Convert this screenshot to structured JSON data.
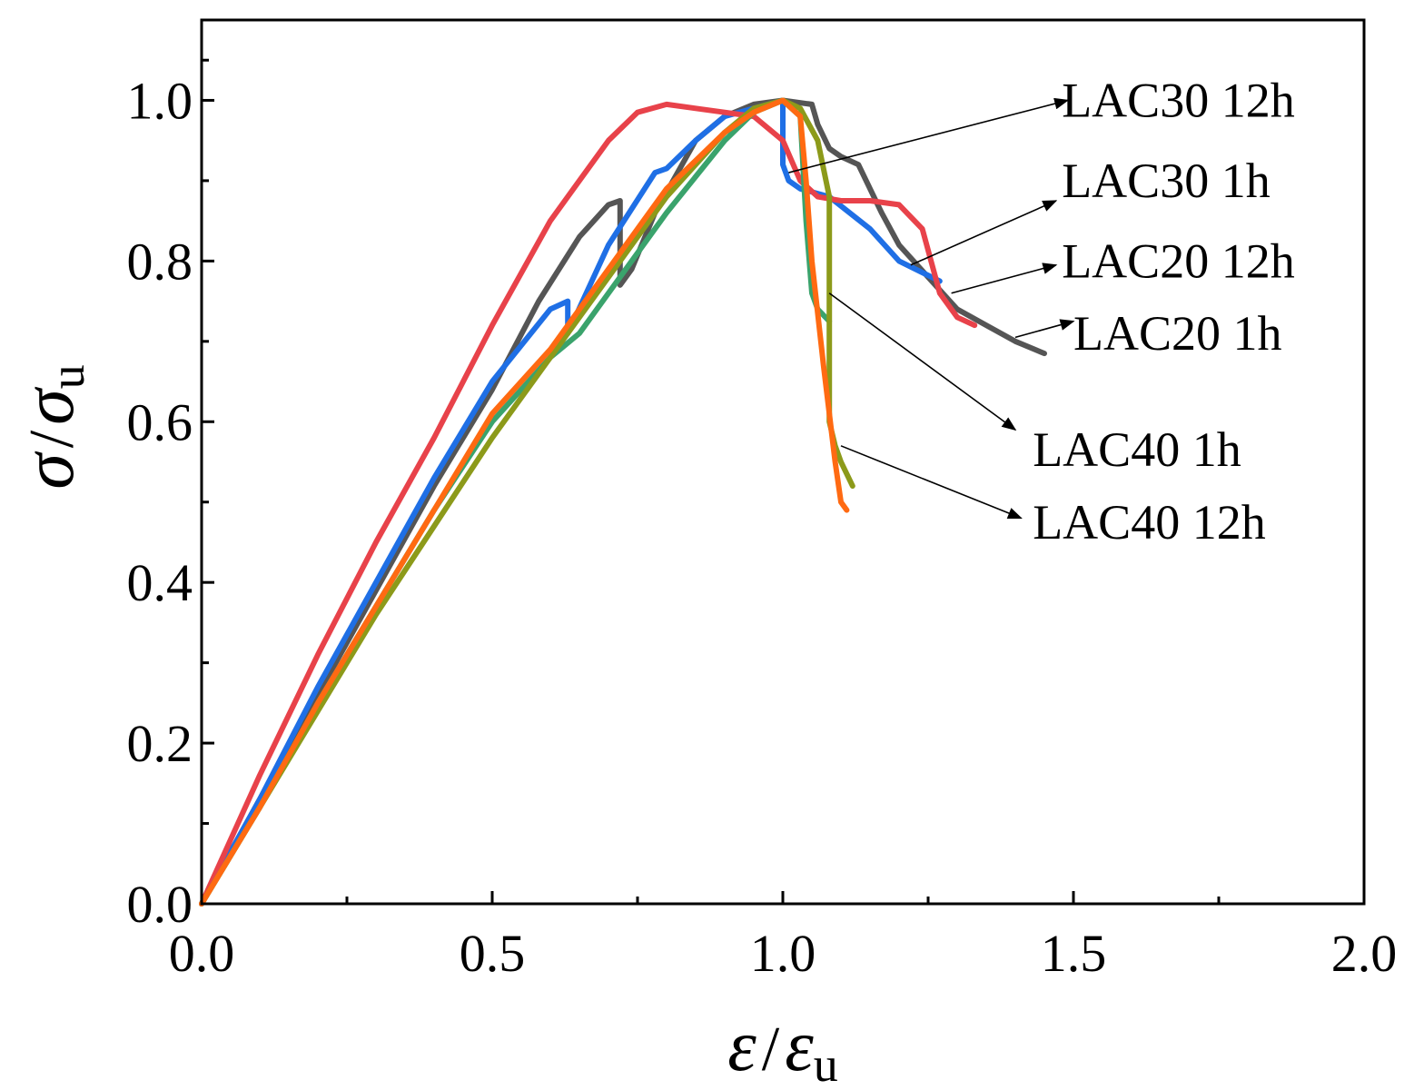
{
  "chart_data": {
    "type": "line",
    "title": "",
    "xlabel": {
      "symbol": "ε",
      "sep": "/",
      "denom": "ε",
      "sub": "u"
    },
    "ylabel": {
      "symbol": "σ",
      "sep": "/",
      "denom": "σ",
      "sub": "u"
    },
    "xlim": [
      0,
      2.0
    ],
    "ylim": [
      0,
      1.1
    ],
    "x_ticks": [
      0.0,
      0.5,
      1.0,
      1.5,
      2.0
    ],
    "x_tick_labels": [
      "0.0",
      "0.5",
      "1.0",
      "1.5",
      "2.0"
    ],
    "y_ticks": [
      0.0,
      0.2,
      0.4,
      0.6,
      0.8,
      1.0
    ],
    "y_tick_labels": [
      "0.0",
      "0.2",
      "0.4",
      "0.6",
      "0.8",
      "1.0"
    ],
    "grid": false,
    "series": [
      {
        "name": "LAC30 12h",
        "color": "#555555",
        "x": [
          0,
          0.1,
          0.2,
          0.3,
          0.4,
          0.5,
          0.58,
          0.65,
          0.7,
          0.72,
          0.72,
          0.74,
          0.78,
          0.85,
          0.9,
          0.95,
          1.0,
          1.05,
          1.06,
          1.08,
          1.1,
          1.13,
          1.17,
          1.2,
          1.25,
          1.3,
          1.35,
          1.4,
          1.45
        ],
        "y": [
          0,
          0.13,
          0.26,
          0.39,
          0.52,
          0.64,
          0.75,
          0.83,
          0.87,
          0.875,
          0.77,
          0.79,
          0.86,
          0.95,
          0.98,
          0.995,
          1.0,
          0.995,
          0.97,
          0.94,
          0.93,
          0.92,
          0.86,
          0.82,
          0.78,
          0.74,
          0.72,
          0.7,
          0.685
        ]
      },
      {
        "name": "LAC30 1h",
        "color": "#1f6fe5",
        "x": [
          0,
          0.1,
          0.2,
          0.3,
          0.4,
          0.5,
          0.6,
          0.63,
          0.63,
          0.7,
          0.78,
          0.8,
          0.85,
          0.9,
          0.95,
          1.0,
          1.0,
          1.01,
          1.03,
          1.08,
          1.15,
          1.2,
          1.27
        ],
        "y": [
          0,
          0.13,
          0.27,
          0.4,
          0.53,
          0.65,
          0.74,
          0.75,
          0.71,
          0.82,
          0.91,
          0.915,
          0.95,
          0.98,
          0.99,
          1.0,
          0.92,
          0.9,
          0.89,
          0.88,
          0.84,
          0.8,
          0.775
        ]
      },
      {
        "name": "LAC20 12h",
        "color": "#e8424a",
        "x": [
          0,
          0.1,
          0.2,
          0.3,
          0.4,
          0.5,
          0.6,
          0.7,
          0.75,
          0.8,
          0.85,
          0.9,
          0.95,
          1.0,
          1.03,
          1.06,
          1.1,
          1.15,
          1.2,
          1.24,
          1.27,
          1.3,
          1.33
        ],
        "y": [
          0,
          0.16,
          0.31,
          0.45,
          0.58,
          0.72,
          0.85,
          0.95,
          0.985,
          0.995,
          0.99,
          0.985,
          0.98,
          0.95,
          0.9,
          0.88,
          0.875,
          0.875,
          0.87,
          0.84,
          0.76,
          0.73,
          0.72
        ]
      },
      {
        "name": "LAC20 1h",
        "color": "#3aa36c",
        "x": [
          0,
          0.1,
          0.2,
          0.3,
          0.4,
          0.5,
          0.6,
          0.65,
          0.7,
          0.8,
          0.9,
          0.95,
          1.0,
          1.03,
          1.04,
          1.05,
          1.06,
          1.08
        ],
        "y": [
          0,
          0.12,
          0.25,
          0.37,
          0.49,
          0.6,
          0.68,
          0.71,
          0.76,
          0.86,
          0.95,
          0.985,
          1.0,
          0.98,
          0.85,
          0.76,
          0.74,
          0.725
        ]
      },
      {
        "name": "LAC40 1h",
        "color": "#8c9a1a",
        "x": [
          0,
          0.1,
          0.2,
          0.3,
          0.4,
          0.5,
          0.6,
          0.7,
          0.8,
          0.9,
          0.95,
          1.0,
          1.03,
          1.06,
          1.08,
          1.08,
          1.09,
          1.1,
          1.12
        ],
        "y": [
          0,
          0.12,
          0.24,
          0.36,
          0.47,
          0.58,
          0.68,
          0.78,
          0.88,
          0.96,
          0.99,
          1.0,
          0.99,
          0.95,
          0.88,
          0.6,
          0.57,
          0.55,
          0.52
        ]
      },
      {
        "name": "LAC40 12h",
        "color": "#ff6a12",
        "x": [
          0,
          0.1,
          0.2,
          0.3,
          0.4,
          0.5,
          0.6,
          0.7,
          0.8,
          0.9,
          0.95,
          1.0,
          1.03,
          1.04,
          1.05,
          1.07,
          1.09,
          1.1,
          1.11
        ],
        "y": [
          0,
          0.12,
          0.25,
          0.37,
          0.49,
          0.61,
          0.69,
          0.79,
          0.89,
          0.96,
          0.985,
          1.0,
          0.98,
          0.9,
          0.8,
          0.67,
          0.55,
          0.5,
          0.49
        ]
      }
    ],
    "annotations": [
      {
        "label": "LAC30 12h",
        "series": "LAC30 12h",
        "from": [
          1.01,
          0.91
        ],
        "to": [
          1.49,
          1.0
        ],
        "text_at": [
          1.48,
          1.0
        ]
      },
      {
        "label": "LAC30 1h",
        "series": "LAC30 1h",
        "from": [
          1.22,
          0.795
        ],
        "to": [
          1.47,
          0.875
        ],
        "text_at": [
          1.48,
          0.9
        ]
      },
      {
        "label": "LAC20 12h",
        "series": "LAC20 12h",
        "from": [
          1.29,
          0.76
        ],
        "to": [
          1.47,
          0.795
        ],
        "text_at": [
          1.48,
          0.8
        ]
      },
      {
        "label": "LAC20 1h",
        "series": "LAC20 1h",
        "from": [
          1.4,
          0.705
        ],
        "to": [
          1.5,
          0.725
        ],
        "text_at": [
          1.5,
          0.71
        ]
      },
      {
        "label": "LAC40 1h",
        "series": "LAC40 1h",
        "from": [
          1.08,
          0.76
        ],
        "to": [
          1.4,
          0.59
        ],
        "text_at": [
          1.43,
          0.565
        ]
      },
      {
        "label": "LAC40 12h",
        "series": "LAC40 12h",
        "from": [
          1.1,
          0.57
        ],
        "to": [
          1.41,
          0.48
        ],
        "text_at": [
          1.43,
          0.475
        ]
      }
    ],
    "legend_position": "annotations to the right of curves"
  }
}
